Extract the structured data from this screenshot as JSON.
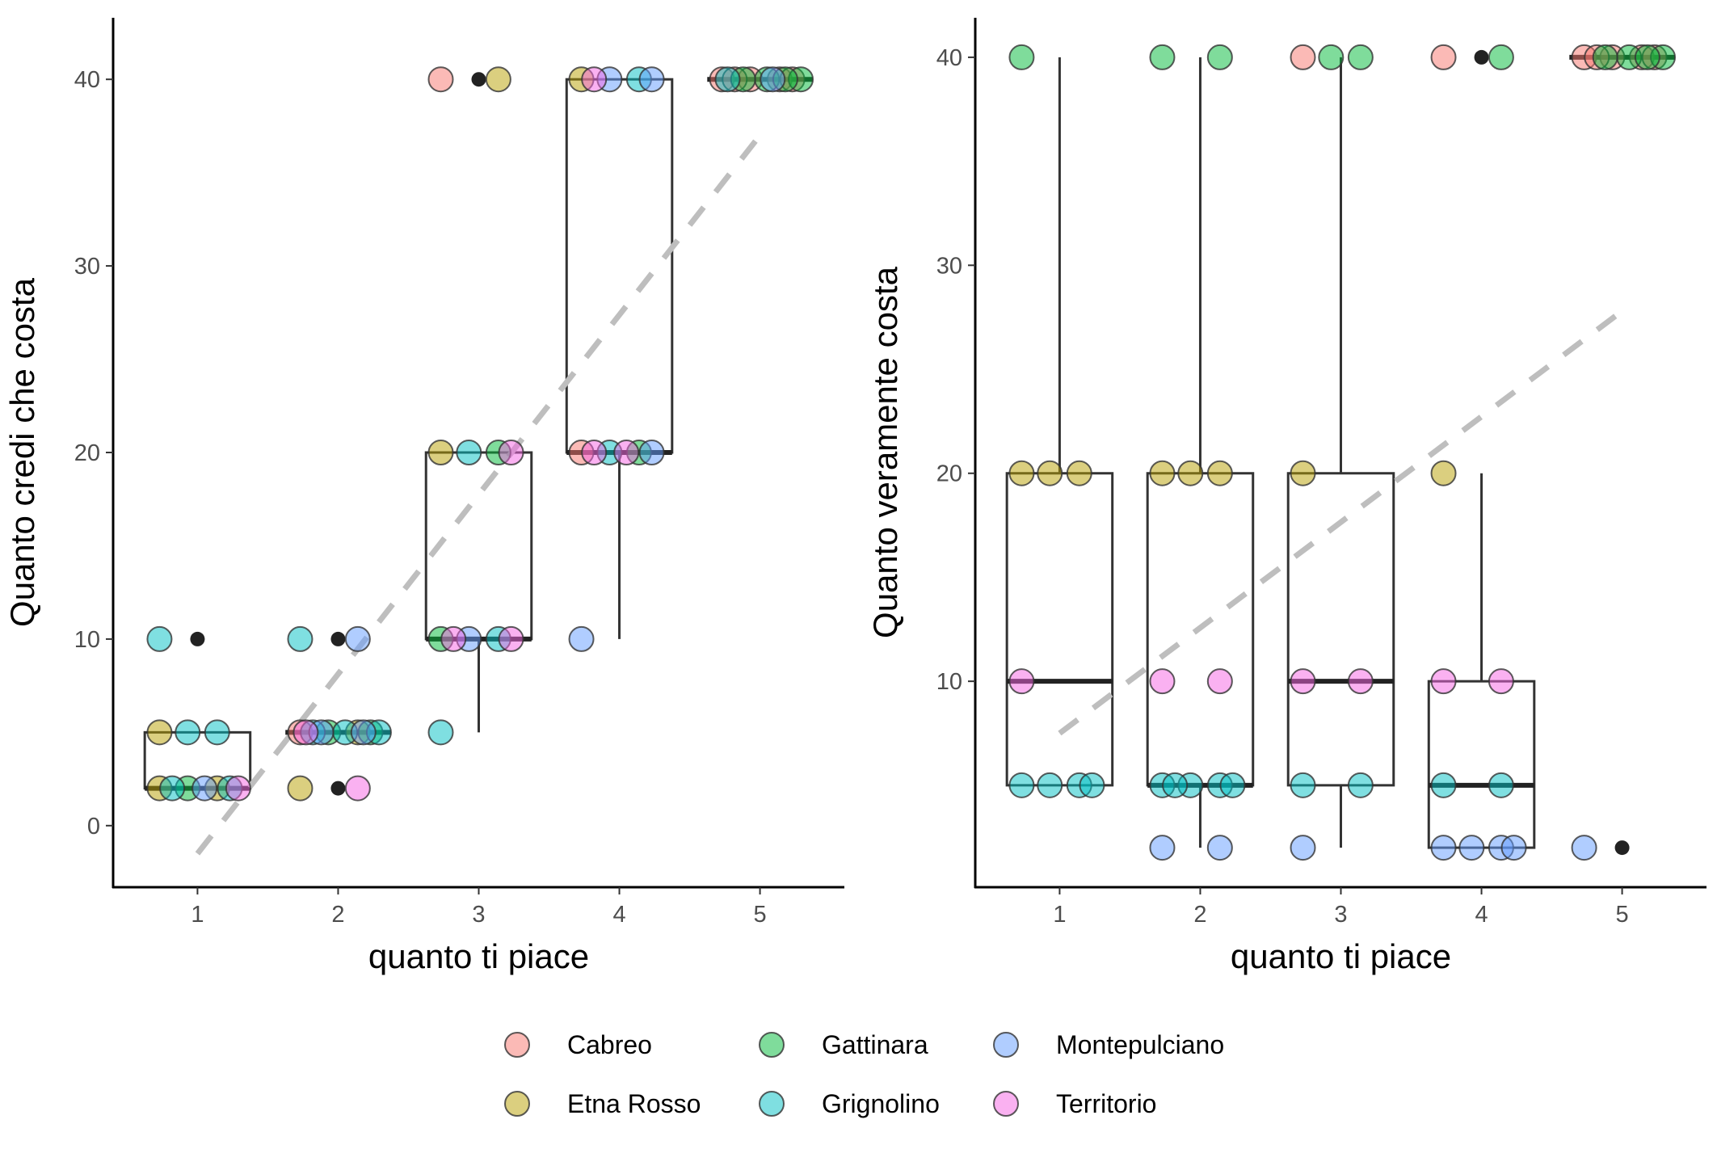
{
  "legend": {
    "position": "bottom",
    "entries": [
      {
        "name": "Cabreo",
        "color": "#F8766D"
      },
      {
        "name": "Etna Rosso",
        "color": "#B79F00"
      },
      {
        "name": "Gattinara",
        "color": "#00BA38"
      },
      {
        "name": "Grignolino",
        "color": "#00BFC4"
      },
      {
        "name": "Montepulciano",
        "color": "#619CFF"
      },
      {
        "name": "Territorio",
        "color": "#F564E3"
      }
    ]
  },
  "chart_data": [
    {
      "type": "boxplot",
      "xlabel": "quanto ti piace",
      "ylabel": "Quanto credi che costa",
      "categories": [
        "1",
        "2",
        "3",
        "4",
        "5"
      ],
      "ylim": [
        -3.3,
        43.3
      ],
      "yticks": [
        0,
        10,
        20,
        30,
        40
      ],
      "grid": false,
      "boxes": [
        {
          "x": 1,
          "low": 2,
          "q1": 2,
          "median": 2,
          "q3": 5,
          "high": 5,
          "outliers": [
            10
          ]
        },
        {
          "x": 2,
          "low": 5,
          "q1": 5,
          "median": 5,
          "q3": 5,
          "high": 5,
          "outliers": [
            2,
            10
          ]
        },
        {
          "x": 3,
          "low": 5,
          "q1": 10,
          "median": 10,
          "q3": 20,
          "high": 20,
          "outliers": [
            40
          ]
        },
        {
          "x": 4,
          "low": 10,
          "q1": 20,
          "median": 20,
          "q3": 40,
          "high": 40,
          "outliers": []
        },
        {
          "x": 5,
          "low": 40,
          "q1": 40,
          "median": 40,
          "q3": 40,
          "high": 40,
          "outliers": []
        }
      ],
      "trend": {
        "style": "dashed",
        "color": "#bebebe",
        "x": [
          1,
          5
        ],
        "y": [
          -1.5,
          37
        ]
      },
      "points": [
        {
          "x": 1,
          "y": 5,
          "series": "Etna Rosso"
        },
        {
          "x": 1,
          "y": 5,
          "series": "Grignolino"
        },
        {
          "x": 1,
          "y": 5,
          "series": "Grignolino"
        },
        {
          "x": 1,
          "y": 2,
          "series": "Etna Rosso"
        },
        {
          "x": 1,
          "y": 2,
          "series": "Etna Rosso"
        },
        {
          "x": 1,
          "y": 2,
          "series": "Gattinara"
        },
        {
          "x": 1,
          "y": 2,
          "series": "Grignolino"
        },
        {
          "x": 1,
          "y": 2,
          "series": "Grignolino"
        },
        {
          "x": 1,
          "y": 2,
          "series": "Montepulciano"
        },
        {
          "x": 1,
          "y": 2,
          "series": "Territorio"
        },
        {
          "x": 1,
          "y": 10,
          "series": "Grignolino"
        },
        {
          "x": 2,
          "y": 10,
          "series": "Grignolino"
        },
        {
          "x": 2,
          "y": 10,
          "series": "Montepulciano"
        },
        {
          "x": 2,
          "y": 5,
          "series": "Cabreo"
        },
        {
          "x": 2,
          "y": 5,
          "series": "Etna Rosso"
        },
        {
          "x": 2,
          "y": 5,
          "series": "Gattinara"
        },
        {
          "x": 2,
          "y": 5,
          "series": "Gattinara"
        },
        {
          "x": 2,
          "y": 5,
          "series": "Grignolino"
        },
        {
          "x": 2,
          "y": 5,
          "series": "Grignolino"
        },
        {
          "x": 2,
          "y": 5,
          "series": "Grignolino"
        },
        {
          "x": 2,
          "y": 5,
          "series": "Montepulciano"
        },
        {
          "x": 2,
          "y": 5,
          "series": "Montepulciano"
        },
        {
          "x": 2,
          "y": 5,
          "series": "Territorio"
        },
        {
          "x": 2,
          "y": 2,
          "series": "Etna Rosso"
        },
        {
          "x": 2,
          "y": 2,
          "series": "Territorio"
        },
        {
          "x": 3,
          "y": 40,
          "series": "Cabreo"
        },
        {
          "x": 3,
          "y": 40,
          "series": "Etna Rosso"
        },
        {
          "x": 3,
          "y": 20,
          "series": "Etna Rosso"
        },
        {
          "x": 3,
          "y": 20,
          "series": "Gattinara"
        },
        {
          "x": 3,
          "y": 20,
          "series": "Grignolino"
        },
        {
          "x": 3,
          "y": 20,
          "series": "Territorio"
        },
        {
          "x": 3,
          "y": 10,
          "series": "Gattinara"
        },
        {
          "x": 3,
          "y": 10,
          "series": "Grignolino"
        },
        {
          "x": 3,
          "y": 10,
          "series": "Montepulciano"
        },
        {
          "x": 3,
          "y": 10,
          "series": "Territorio"
        },
        {
          "x": 3,
          "y": 10,
          "series": "Territorio"
        },
        {
          "x": 3,
          "y": 5,
          "series": "Grignolino"
        },
        {
          "x": 4,
          "y": 40,
          "series": "Etna Rosso"
        },
        {
          "x": 4,
          "y": 40,
          "series": "Grignolino"
        },
        {
          "x": 4,
          "y": 40,
          "series": "Montepulciano"
        },
        {
          "x": 4,
          "y": 40,
          "series": "Montepulciano"
        },
        {
          "x": 4,
          "y": 40,
          "series": "Territorio"
        },
        {
          "x": 4,
          "y": 20,
          "series": "Cabreo"
        },
        {
          "x": 4,
          "y": 20,
          "series": "Gattinara"
        },
        {
          "x": 4,
          "y": 20,
          "series": "Grignolino"
        },
        {
          "x": 4,
          "y": 20,
          "series": "Montepulciano"
        },
        {
          "x": 4,
          "y": 20,
          "series": "Territorio"
        },
        {
          "x": 4,
          "y": 20,
          "series": "Territorio"
        },
        {
          "x": 4,
          "y": 10,
          "series": "Montepulciano"
        },
        {
          "x": 5,
          "y": 40,
          "series": "Cabreo"
        },
        {
          "x": 5,
          "y": 40,
          "series": "Cabreo"
        },
        {
          "x": 5,
          "y": 40,
          "series": "Cabreo"
        },
        {
          "x": 5,
          "y": 40,
          "series": "Cabreo"
        },
        {
          "x": 5,
          "y": 40,
          "series": "Cabreo"
        },
        {
          "x": 5,
          "y": 40,
          "series": "Gattinara"
        },
        {
          "x": 5,
          "y": 40,
          "series": "Gattinara"
        },
        {
          "x": 5,
          "y": 40,
          "series": "Gattinara"
        },
        {
          "x": 5,
          "y": 40,
          "series": "Gattinara"
        },
        {
          "x": 5,
          "y": 40,
          "series": "Grignolino"
        },
        {
          "x": 5,
          "y": 40,
          "series": "Montepulciano"
        }
      ]
    },
    {
      "type": "boxplot",
      "xlabel": "quanto ti piace",
      "ylabel": "Quanto veramente costa",
      "categories": [
        "1",
        "2",
        "3",
        "4",
        "5"
      ],
      "ylim": [
        0.1,
        41.9
      ],
      "yticks": [
        10,
        20,
        30,
        40
      ],
      "grid": false,
      "boxes": [
        {
          "x": 1,
          "low": 5,
          "q1": 5,
          "median": 10,
          "q3": 20,
          "high": 40,
          "outliers": []
        },
        {
          "x": 2,
          "low": 2,
          "q1": 5,
          "median": 5,
          "q3": 20,
          "high": 40,
          "outliers": []
        },
        {
          "x": 3,
          "low": 2,
          "q1": 5,
          "median": 10,
          "q3": 20,
          "high": 40,
          "outliers": []
        },
        {
          "x": 4,
          "low": 2,
          "q1": 2,
          "median": 5,
          "q3": 10,
          "high": 20,
          "outliers": [
            40
          ]
        },
        {
          "x": 5,
          "low": 40,
          "q1": 40,
          "median": 40,
          "q3": 40,
          "high": 40,
          "outliers": [
            2
          ]
        }
      ],
      "trend": {
        "style": "dashed",
        "color": "#bebebe",
        "x": [
          1,
          5
        ],
        "y": [
          7.5,
          27.8
        ]
      },
      "points": [
        {
          "x": 1,
          "y": 40,
          "series": "Gattinara"
        },
        {
          "x": 1,
          "y": 20,
          "series": "Etna Rosso"
        },
        {
          "x": 1,
          "y": 20,
          "series": "Etna Rosso"
        },
        {
          "x": 1,
          "y": 20,
          "series": "Etna Rosso"
        },
        {
          "x": 1,
          "y": 10,
          "series": "Territorio"
        },
        {
          "x": 1,
          "y": 5,
          "series": "Grignolino"
        },
        {
          "x": 1,
          "y": 5,
          "series": "Grignolino"
        },
        {
          "x": 1,
          "y": 5,
          "series": "Grignolino"
        },
        {
          "x": 1,
          "y": 5,
          "series": "Grignolino"
        },
        {
          "x": 2,
          "y": 40,
          "series": "Gattinara"
        },
        {
          "x": 2,
          "y": 40,
          "series": "Gattinara"
        },
        {
          "x": 2,
          "y": 20,
          "series": "Etna Rosso"
        },
        {
          "x": 2,
          "y": 20,
          "series": "Etna Rosso"
        },
        {
          "x": 2,
          "y": 20,
          "series": "Etna Rosso"
        },
        {
          "x": 2,
          "y": 10,
          "series": "Territorio"
        },
        {
          "x": 2,
          "y": 10,
          "series": "Territorio"
        },
        {
          "x": 2,
          "y": 5,
          "series": "Grignolino"
        },
        {
          "x": 2,
          "y": 5,
          "series": "Grignolino"
        },
        {
          "x": 2,
          "y": 5,
          "series": "Grignolino"
        },
        {
          "x": 2,
          "y": 5,
          "series": "Grignolino"
        },
        {
          "x": 2,
          "y": 5,
          "series": "Grignolino"
        },
        {
          "x": 2,
          "y": 2,
          "series": "Montepulciano"
        },
        {
          "x": 2,
          "y": 2,
          "series": "Montepulciano"
        },
        {
          "x": 3,
          "y": 40,
          "series": "Cabreo"
        },
        {
          "x": 3,
          "y": 40,
          "series": "Gattinara"
        },
        {
          "x": 3,
          "y": 40,
          "series": "Gattinara"
        },
        {
          "x": 3,
          "y": 20,
          "series": "Etna Rosso"
        },
        {
          "x": 3,
          "y": 10,
          "series": "Territorio"
        },
        {
          "x": 3,
          "y": 10,
          "series": "Territorio"
        },
        {
          "x": 3,
          "y": 5,
          "series": "Grignolino"
        },
        {
          "x": 3,
          "y": 5,
          "series": "Grignolino"
        },
        {
          "x": 3,
          "y": 2,
          "series": "Montepulciano"
        },
        {
          "x": 4,
          "y": 40,
          "series": "Cabreo"
        },
        {
          "x": 4,
          "y": 40,
          "series": "Gattinara"
        },
        {
          "x": 4,
          "y": 20,
          "series": "Etna Rosso"
        },
        {
          "x": 4,
          "y": 10,
          "series": "Territorio"
        },
        {
          "x": 4,
          "y": 10,
          "series": "Territorio"
        },
        {
          "x": 4,
          "y": 5,
          "series": "Grignolino"
        },
        {
          "x": 4,
          "y": 5,
          "series": "Grignolino"
        },
        {
          "x": 4,
          "y": 2,
          "series": "Montepulciano"
        },
        {
          "x": 4,
          "y": 2,
          "series": "Montepulciano"
        },
        {
          "x": 4,
          "y": 2,
          "series": "Montepulciano"
        },
        {
          "x": 4,
          "y": 2,
          "series": "Montepulciano"
        },
        {
          "x": 5,
          "y": 40,
          "series": "Cabreo"
        },
        {
          "x": 5,
          "y": 40,
          "series": "Cabreo"
        },
        {
          "x": 5,
          "y": 40,
          "series": "Cabreo"
        },
        {
          "x": 5,
          "y": 40,
          "series": "Cabreo"
        },
        {
          "x": 5,
          "y": 40,
          "series": "Cabreo"
        },
        {
          "x": 5,
          "y": 40,
          "series": "Gattinara"
        },
        {
          "x": 5,
          "y": 40,
          "series": "Gattinara"
        },
        {
          "x": 5,
          "y": 40,
          "series": "Gattinara"
        },
        {
          "x": 5,
          "y": 40,
          "series": "Gattinara"
        },
        {
          "x": 5,
          "y": 2,
          "series": "Montepulciano"
        }
      ]
    }
  ]
}
